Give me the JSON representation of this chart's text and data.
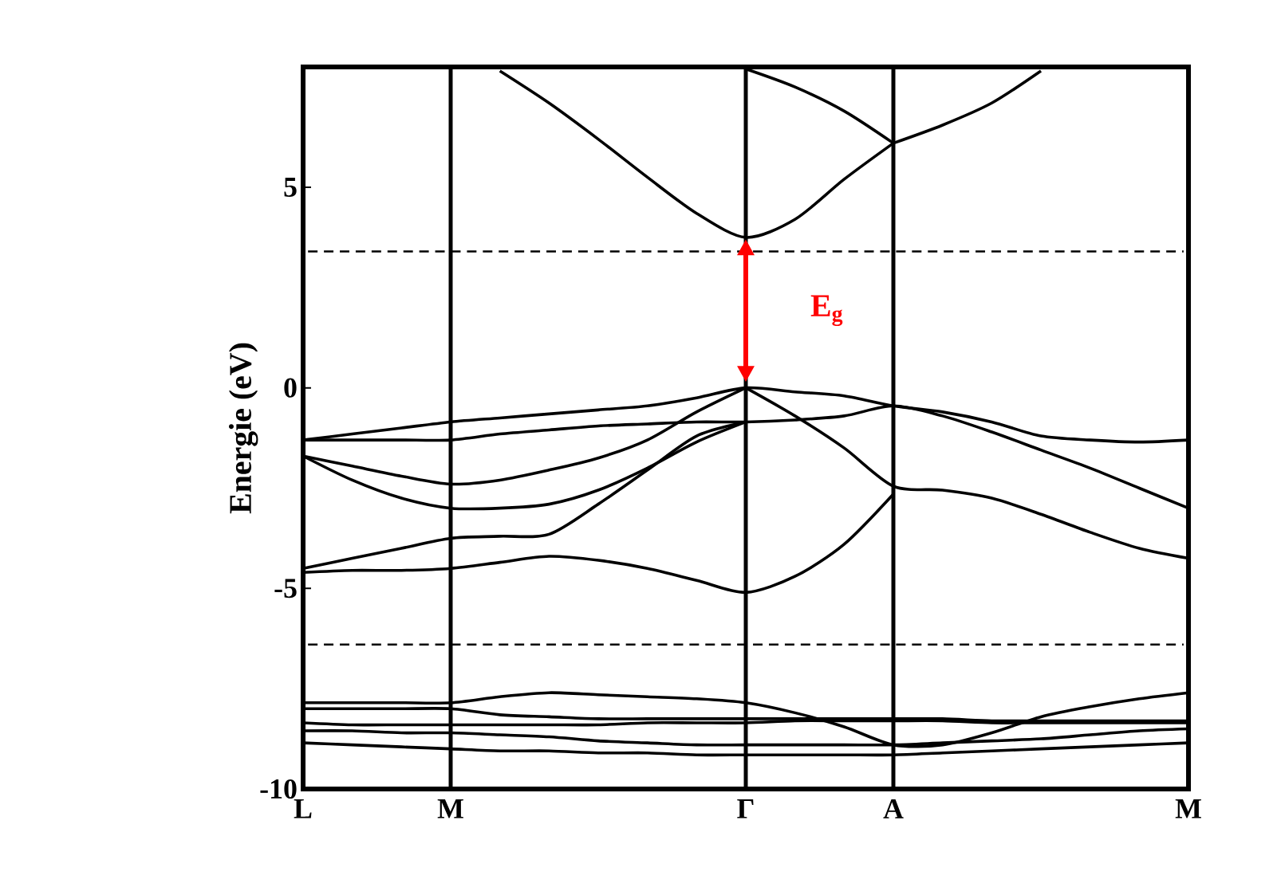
{
  "chart_data": {
    "type": "line",
    "ylabel": "Energie (eV)",
    "categories": [
      "L",
      null,
      null,
      "M",
      null,
      null,
      null,
      null,
      null,
      "Γ",
      null,
      null,
      "A",
      null,
      null,
      null,
      null,
      null,
      "M"
    ],
    "ylim": [
      -10,
      8
    ],
    "yticks": [
      -10,
      -5,
      0,
      5
    ],
    "ref_lines": [
      {
        "axis": "x",
        "value": "M",
        "color": "#000000"
      },
      {
        "axis": "x",
        "value": "Γ",
        "color": "#000000"
      },
      {
        "axis": "x",
        "value": "A",
        "color": "#000000"
      },
      {
        "axis": "y",
        "value": 3.4,
        "color": "#000000",
        "line_style": "dashed"
      },
      {
        "axis": "y",
        "value": -6.4,
        "color": "#000000",
        "line_style": "dashed"
      }
    ],
    "annotations": [
      "E$_{g}$"
    ],
    "series": [
      {
        "color": "#000000",
        "values": [
          null,
          null,
          null,
          null,
          7.9,
          7.1,
          6.2,
          5.25,
          4.35,
          3.75,
          4.2,
          5.2,
          6.1,
          null,
          null,
          null,
          null,
          null,
          null
        ]
      },
      {
        "color": "#000000",
        "values": [
          null,
          null,
          null,
          null,
          null,
          null,
          null,
          null,
          null,
          null,
          null,
          null,
          6.1,
          6.55,
          7.1,
          7.9,
          null,
          null,
          null
        ]
      },
      {
        "color": "#000000",
        "values": [
          null,
          null,
          null,
          null,
          null,
          null,
          null,
          null,
          null,
          7.95,
          7.5,
          6.9,
          6.1,
          null,
          null,
          null,
          null,
          null,
          null
        ]
      },
      {
        "color": "#000000",
        "values": [
          -1.3,
          -1.15,
          -1.0,
          -0.85,
          -0.75,
          -0.65,
          -0.55,
          -0.45,
          -0.25,
          0,
          -0.1,
          -0.2,
          -0.45,
          -0.6,
          -0.85,
          -1.2,
          -1.3,
          -1.35,
          -1.3
        ]
      },
      {
        "color": "#000000",
        "values": [
          -1.3,
          -1.3,
          -1.3,
          -1.3,
          -1.15,
          -1.05,
          -0.95,
          -0.9,
          -0.85,
          -0.85,
          -0.8,
          -0.7,
          -0.45,
          -0.7,
          -1.1,
          -1.55,
          -2.0,
          -2.5,
          -3.0
        ]
      },
      {
        "color": "#000000",
        "values": [
          -1.7,
          -1.95,
          -2.2,
          -2.4,
          -2.3,
          -2.05,
          -1.75,
          -1.3,
          -0.6,
          0,
          null,
          null,
          null,
          null,
          null,
          null,
          null,
          null,
          null
        ]
      },
      {
        "color": "#000000",
        "values": [
          -1.7,
          -2.3,
          -2.75,
          -3.0,
          -3.0,
          -2.9,
          -2.55,
          -2.0,
          -1.35,
          -0.85,
          null,
          null,
          null,
          null,
          null,
          null,
          null,
          null,
          null
        ]
      },
      {
        "color": "#000000",
        "values": [
          null,
          null,
          null,
          null,
          null,
          null,
          null,
          null,
          null,
          0,
          -0.7,
          -1.5,
          -2.45,
          -2.55,
          -2.75,
          -3.15,
          -3.6,
          -4.0,
          -4.25
        ]
      },
      {
        "color": "#000000",
        "values": [
          -4.5,
          -4.25,
          -4.0,
          -3.75,
          -3.7,
          -3.65,
          -2.9,
          -2.05,
          -1.2,
          -0.85,
          null,
          null,
          null,
          null,
          null,
          null,
          null,
          null,
          null
        ]
      },
      {
        "color": "#000000",
        "values": [
          -4.6,
          -4.55,
          -4.55,
          -4.5,
          -4.35,
          -4.2,
          -4.3,
          -4.5,
          -4.8,
          -5.1,
          -4.7,
          -3.9,
          -2.65,
          null,
          null,
          null,
          null,
          null,
          null
        ]
      },
      {
        "color": "#000000",
        "values": [
          -7.85,
          -7.85,
          -7.85,
          -7.85,
          -7.7,
          -7.6,
          -7.65,
          -7.7,
          -7.75,
          -7.85,
          -8.1,
          -8.45,
          -8.9,
          -8.9,
          -8.6,
          -8.2,
          -7.95,
          -7.75,
          -7.6
        ]
      },
      {
        "color": "#000000",
        "values": [
          -8.0,
          -8.0,
          -8.0,
          -8.0,
          -8.15,
          -8.2,
          -8.25,
          -8.25,
          -8.25,
          -8.25,
          -8.25,
          -8.25,
          -8.25,
          -8.25,
          -8.3,
          -8.3,
          -8.3,
          -8.3,
          -8.3
        ]
      },
      {
        "color": "#000000",
        "values": [
          -8.35,
          -8.4,
          -8.4,
          -8.4,
          -8.4,
          -8.4,
          -8.4,
          -8.35,
          -8.35,
          -8.35,
          -8.3,
          -8.3,
          -8.3,
          -8.3,
          -8.35,
          -8.35,
          -8.35,
          -8.35,
          -8.35
        ]
      },
      {
        "color": "#000000",
        "values": [
          -8.55,
          -8.55,
          -8.6,
          -8.6,
          -8.65,
          -8.7,
          -8.8,
          -8.85,
          -8.9,
          -8.9,
          -8.9,
          -8.9,
          -8.9,
          -8.85,
          -8.8,
          -8.75,
          -8.65,
          -8.55,
          -8.5
        ]
      },
      {
        "color": "#000000",
        "values": [
          -8.85,
          -8.9,
          -8.95,
          -9.0,
          -9.05,
          -9.05,
          -9.1,
          -9.1,
          -9.15,
          -9.15,
          -9.15,
          -9.15,
          -9.15,
          -9.1,
          -9.05,
          -9.0,
          -8.95,
          -8.9,
          -8.85
        ]
      }
    ]
  }
}
